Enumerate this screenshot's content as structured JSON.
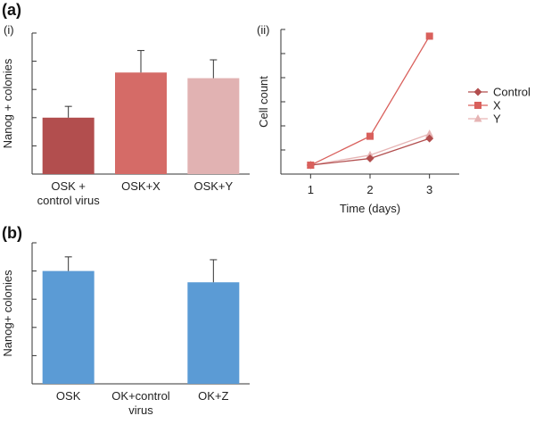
{
  "panels": {
    "a": "(a)",
    "a_i": "(i)",
    "a_ii": "(ii)",
    "b": "(b)"
  },
  "chart_data": [
    {
      "id": "a-i",
      "type": "bar",
      "ylabel": "Nanog + colonies",
      "categories": [
        [
          "OSK +",
          "control virus"
        ],
        [
          "OSK+X"
        ],
        [
          "OSK+Y"
        ]
      ],
      "values": [
        2.0,
        3.6,
        3.4
      ],
      "errors": [
        0.4,
        0.78,
        0.65
      ],
      "colors": [
        "#b24e4e",
        "#d56b67",
        "#e1b2b2"
      ],
      "ylim": [
        0,
        5
      ],
      "yticks": 5
    },
    {
      "id": "a-ii",
      "type": "line",
      "xlabel": "Time (days)",
      "ylabel": "Cell count",
      "x": [
        1,
        2,
        3
      ],
      "xticks": [
        "1",
        "2",
        "3"
      ],
      "ylim": [
        0,
        6.5
      ],
      "yticks": 6,
      "series": [
        {
          "name": "Control",
          "values": [
            0.4,
            0.7,
            1.6
          ],
          "color": "#b24e4e",
          "marker": "diamond"
        },
        {
          "name": "X",
          "values": [
            0.4,
            1.7,
            6.2
          ],
          "color": "#d9605c",
          "marker": "square"
        },
        {
          "name": "Y",
          "values": [
            0.4,
            0.85,
            1.8
          ],
          "color": "#e6b4b4",
          "marker": "triangle"
        }
      ],
      "legend": "right"
    },
    {
      "id": "b",
      "type": "bar",
      "ylabel": "Nanog+ colonies",
      "categories": [
        [
          "OSK"
        ],
        [
          "OK+control",
          "virus"
        ],
        [
          "OK+Z"
        ]
      ],
      "values": [
        4.0,
        0,
        3.6
      ],
      "errors": [
        0.5,
        0,
        0.8
      ],
      "colors": [
        "#5b9bd5",
        "#5b9bd5",
        "#5b9bd5"
      ],
      "ylim": [
        0,
        5
      ],
      "yticks": 5
    }
  ]
}
